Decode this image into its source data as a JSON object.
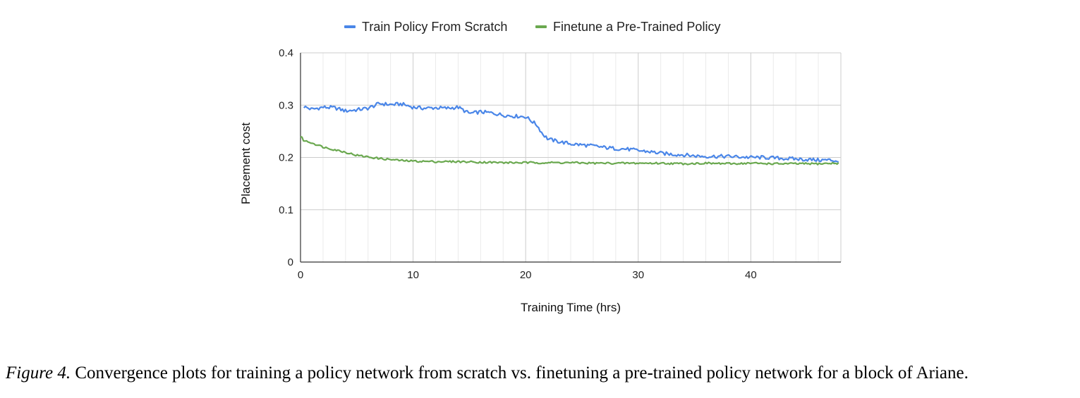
{
  "chart_data": {
    "type": "line",
    "xlabel": "Training Time (hrs)",
    "ylabel": "Placement cost",
    "xlim": [
      0,
      48
    ],
    "ylim": [
      0,
      0.4
    ],
    "xticks": [
      "0",
      "10",
      "20",
      "30",
      "40"
    ],
    "yticks": [
      "0",
      "0.1",
      "0.2",
      "0.3",
      "0.4"
    ],
    "grid": true,
    "legend_position": "top",
    "series": [
      {
        "name": "Train Policy From Scratch",
        "color": "#4a86e8",
        "x": [
          0.3,
          1,
          2,
          3,
          4,
          5,
          6,
          7,
          8,
          9,
          10,
          11,
          12,
          13,
          14,
          15,
          16,
          17,
          18,
          19,
          20,
          21,
          21.5,
          22,
          23,
          24,
          25,
          26,
          27,
          28,
          29,
          30,
          31,
          32,
          33,
          34,
          35,
          36,
          37,
          38,
          39,
          40,
          41,
          42,
          43,
          44,
          45,
          46,
          47,
          47.8
        ],
        "y": [
          0.297,
          0.292,
          0.296,
          0.295,
          0.289,
          0.291,
          0.294,
          0.303,
          0.301,
          0.302,
          0.296,
          0.294,
          0.295,
          0.294,
          0.296,
          0.284,
          0.287,
          0.285,
          0.281,
          0.279,
          0.278,
          0.262,
          0.245,
          0.235,
          0.23,
          0.226,
          0.224,
          0.222,
          0.219,
          0.217,
          0.216,
          0.213,
          0.211,
          0.208,
          0.206,
          0.205,
          0.203,
          0.202,
          0.202,
          0.202,
          0.201,
          0.2,
          0.2,
          0.199,
          0.198,
          0.197,
          0.196,
          0.195,
          0.195,
          0.193
        ]
      },
      {
        "name": "Finetune a Pre-Trained Policy",
        "color": "#6aa84f",
        "x": [
          0,
          0.3,
          1,
          2,
          3,
          4,
          5,
          6,
          7,
          8,
          9,
          10,
          12,
          14,
          16,
          18,
          20,
          22,
          24,
          26,
          28,
          30,
          32,
          34,
          36,
          38,
          40,
          42,
          44,
          46,
          47.8
        ],
        "y": [
          0.241,
          0.232,
          0.228,
          0.22,
          0.215,
          0.21,
          0.204,
          0.201,
          0.198,
          0.196,
          0.194,
          0.193,
          0.192,
          0.192,
          0.191,
          0.19,
          0.19,
          0.19,
          0.19,
          0.189,
          0.189,
          0.189,
          0.189,
          0.188,
          0.189,
          0.188,
          0.189,
          0.188,
          0.188,
          0.188,
          0.189
        ]
      }
    ]
  },
  "caption": {
    "label": "Figure 4.",
    "text": " Convergence plots for training a policy network from scratch vs. finetuning a pre-trained policy network for a block of Ariane."
  }
}
